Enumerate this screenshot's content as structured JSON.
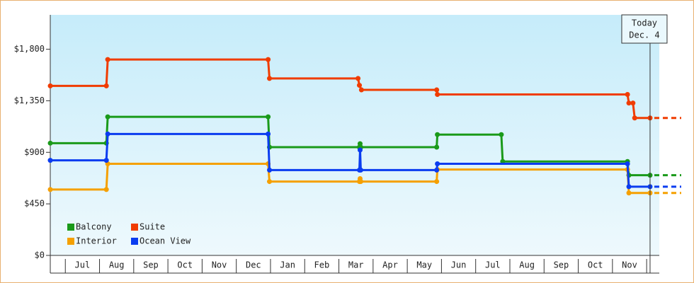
{
  "chart_data": {
    "type": "line",
    "xlim": [
      -0.44,
      17.37
    ],
    "xticks": [
      {
        "value": 0.5,
        "label": "Jul"
      },
      {
        "value": 1.5,
        "label": "Aug"
      },
      {
        "value": 2.5,
        "label": "Sep"
      },
      {
        "value": 3.5,
        "label": "Oct"
      },
      {
        "value": 4.5,
        "label": "Nov"
      },
      {
        "value": 5.5,
        "label": "Dec"
      },
      {
        "value": 6.5,
        "label": "Jan"
      },
      {
        "value": 7.5,
        "label": "Feb"
      },
      {
        "value": 8.5,
        "label": "Mar"
      },
      {
        "value": 9.5,
        "label": "Apr"
      },
      {
        "value": 10.5,
        "label": "May"
      },
      {
        "value": 11.5,
        "label": "Jun"
      },
      {
        "value": 12.5,
        "label": "Jul"
      },
      {
        "value": 13.5,
        "label": "Aug"
      },
      {
        "value": 14.5,
        "label": "Sep"
      },
      {
        "value": 15.5,
        "label": "Oct"
      },
      {
        "value": 16.5,
        "label": "Nov"
      }
    ],
    "ylim": [
      0,
      2100
    ],
    "yticks": [
      {
        "value": 0,
        "label": "$0"
      },
      {
        "value": 450,
        "label": "$450"
      },
      {
        "value": 900,
        "label": "$900"
      },
      {
        "value": 1350,
        "label": "$1,350"
      },
      {
        "value": 1800,
        "label": "$1,800"
      }
    ],
    "annotation": {
      "text": [
        "Today",
        "Dec. 4"
      ],
      "x": 17.1
    },
    "series": [
      {
        "name": "Balcony",
        "color": "#1a9a1a",
        "x": [
          -0.44,
          1.2,
          1.24,
          5.93,
          5.97,
          8.6,
          8.62,
          8.64,
          10.86,
          10.88,
          12.75,
          12.79,
          16.44,
          16.48,
          17.1
        ],
        "values": [
          980,
          980,
          1210,
          1210,
          945,
          945,
          975,
          945,
          945,
          1055,
          1055,
          820,
          820,
          700,
          700
        ]
      },
      {
        "name": "Suite",
        "color": "#f03c00",
        "x": [
          -0.44,
          1.2,
          1.24,
          5.93,
          5.97,
          8.56,
          8.6,
          8.66,
          10.86,
          10.88,
          16.44,
          16.48,
          16.6,
          16.65,
          17.1
        ],
        "values": [
          1480,
          1480,
          1710,
          1710,
          1545,
          1545,
          1485,
          1445,
          1445,
          1405,
          1405,
          1330,
          1330,
          1200,
          1200
        ]
      },
      {
        "name": "Interior",
        "color": "#f5a000",
        "x": [
          -0.44,
          1.2,
          1.24,
          5.93,
          5.97,
          8.6,
          8.62,
          8.64,
          10.86,
          10.88,
          16.44,
          16.48,
          17.1
        ],
        "values": [
          575,
          575,
          800,
          800,
          645,
          645,
          670,
          645,
          645,
          750,
          750,
          545,
          545
        ]
      },
      {
        "name": "Ocean View",
        "color": "#0a3cf0",
        "x": [
          -0.44,
          1.2,
          1.24,
          5.93,
          5.97,
          8.6,
          8.62,
          8.64,
          10.86,
          10.88,
          16.44,
          16.48,
          17.1
        ],
        "values": [
          830,
          830,
          1060,
          1060,
          745,
          745,
          920,
          745,
          745,
          800,
          800,
          600,
          600
        ]
      }
    ]
  }
}
